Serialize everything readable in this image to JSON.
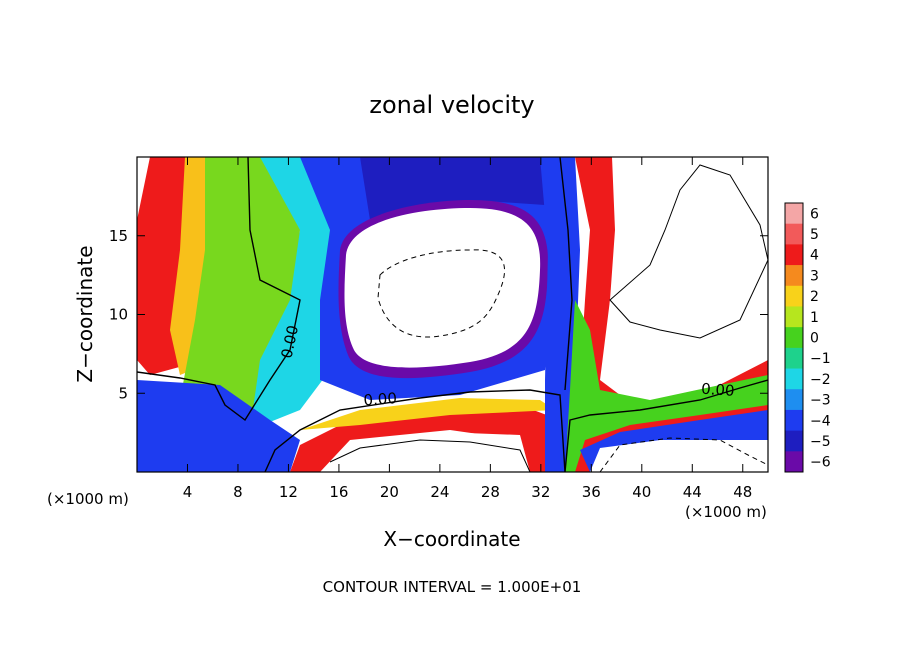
{
  "chart_data": {
    "type": "heatmap",
    "title": "zonal velocity",
    "xlabel": "X−coordinate",
    "ylabel": "Z−coordinate",
    "x_unit_left": "(×1000 m)",
    "x_unit_right": "(×1000 m)",
    "footer": "CONTOUR INTERVAL = 1.000E+01",
    "xlim": [
      0,
      50
    ],
    "ylim": [
      0,
      20
    ],
    "x_ticks": [
      4,
      8,
      12,
      16,
      20,
      24,
      28,
      32,
      36,
      40,
      44,
      48
    ],
    "y_ticks": [
      5,
      10,
      15
    ],
    "colorbar": {
      "levels": [
        6,
        5,
        4,
        3,
        2,
        1,
        0,
        -1,
        -2,
        -3,
        -4,
        -5,
        -6
      ],
      "labels": [
        "6",
        "5",
        "4",
        "3",
        "2",
        "1",
        "0",
        "−1",
        "−2",
        "−3",
        "−4",
        "−5",
        "−6"
      ],
      "colors": [
        "#f4a6a6",
        "#f25a5a",
        "#ee1b1b",
        "#f58a1e",
        "#f8d21a",
        "#b6e61e",
        "#46d21e",
        "#1ed28c",
        "#1ed6e6",
        "#1e8ef0",
        "#1e3cf0",
        "#1e1ec0",
        "#6a0aa8"
      ],
      "white_band": "values beyond ±6 shown white"
    },
    "contour_labels": [
      {
        "text": "0.00",
        "x": 12.5,
        "y": 8.2
      },
      {
        "text": "0.00",
        "x": 19.3,
        "y": 4.3
      },
      {
        "text": "0.00",
        "x": 46.0,
        "y": 4.9
      }
    ]
  }
}
